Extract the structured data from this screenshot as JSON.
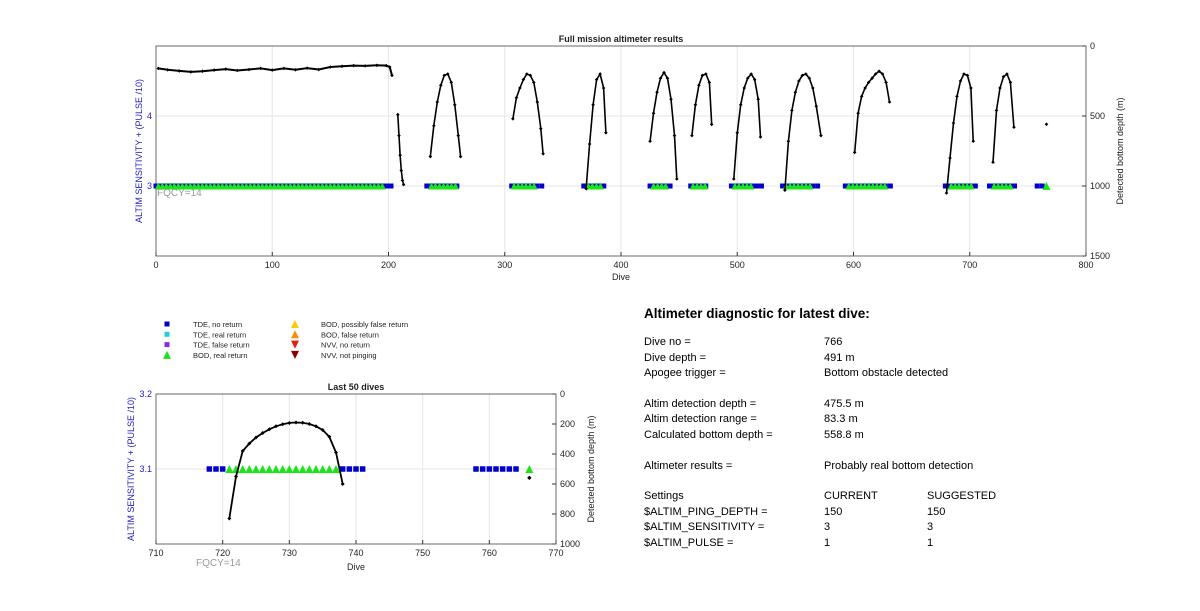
{
  "colors": {
    "tde_no_return": "#0000cc",
    "tde_real_return": "#22cfd8",
    "tde_false_return": "#8a2be2",
    "bod_real_return": "#19e619",
    "bod_possibly_false_return": "#ffcc00",
    "bod_false_return": "#ff8c00",
    "nvv_no_return": "#e02010",
    "nvv_not_pinging": "#8b0000",
    "depth_line": "#000000",
    "left_axis_label": "#1f1fbf",
    "annotation": "#999999"
  },
  "chart_data": [
    {
      "type": "scatter",
      "title": "Full mission altimeter results",
      "xlabel": "Dive",
      "ylabel": "ALTIM SENSITIVITY + (PULSE /10)",
      "y2label": "Detected bottom depth (m)",
      "xlim": [
        0,
        800
      ],
      "ylim": [
        2,
        5
      ],
      "y2lim": [
        0,
        1500
      ],
      "y2_reversed": true,
      "xticks": [
        "0",
        "100",
        "200",
        "300",
        "400",
        "500",
        "600",
        "700",
        "800"
      ],
      "yticks": [
        "3",
        "4"
      ],
      "y2ticks": [
        "0",
        "500",
        "1000",
        "1500"
      ],
      "grid": true,
      "annotation": "FQCY=14",
      "tde_no_return_segments": [
        [
          0,
          205
        ],
        [
          233,
          263
        ],
        [
          306,
          334
        ],
        [
          368,
          387
        ],
        [
          425,
          446
        ],
        [
          460,
          477
        ],
        [
          495,
          521
        ],
        [
          539,
          573
        ],
        [
          593,
          636
        ],
        [
          679,
          707
        ],
        [
          717,
          741
        ],
        [
          758,
          764
        ]
      ],
      "bod_real_return_segments": [
        [
          2,
          198
        ],
        [
          237,
          260
        ],
        [
          308,
          328
        ],
        [
          372,
          384
        ],
        [
          428,
          441
        ],
        [
          462,
          474
        ],
        [
          498,
          515
        ],
        [
          542,
          566
        ],
        [
          596,
          628
        ],
        [
          684,
          702
        ],
        [
          721,
          738
        ]
      ],
      "bod_real_return_points": [
        766
      ],
      "depth_arcs": [
        {
          "x": [
            208,
            209,
            210,
            211,
            212,
            213
          ],
          "depth": [
            490,
            640,
            780,
            890,
            960,
            990
          ]
        },
        {
          "x": [
            236,
            239,
            242,
            245,
            248,
            251,
            254,
            257,
            260,
            262
          ],
          "depth": [
            790,
            570,
            400,
            280,
            210,
            200,
            260,
            420,
            640,
            790
          ]
        },
        {
          "x": [
            307,
            310,
            313,
            316,
            319,
            322,
            325,
            328,
            331,
            333
          ],
          "depth": [
            520,
            370,
            300,
            240,
            200,
            210,
            260,
            400,
            590,
            770
          ]
        },
        {
          "x": [
            370,
            373,
            376,
            379,
            382,
            385,
            387
          ],
          "depth": [
            1020,
            700,
            420,
            240,
            200,
            300,
            620
          ]
        },
        {
          "x": [
            425,
            428,
            431,
            434,
            437,
            440,
            443,
            446,
            448
          ],
          "depth": [
            680,
            480,
            330,
            230,
            190,
            230,
            380,
            640,
            950
          ]
        },
        {
          "x": [
            461,
            464,
            467,
            470,
            473,
            476,
            478
          ],
          "depth": [
            640,
            420,
            280,
            210,
            200,
            260,
            560
          ]
        },
        {
          "x": [
            497,
            500,
            503,
            506,
            509,
            512,
            515,
            518,
            520
          ],
          "depth": [
            950,
            620,
            420,
            300,
            230,
            200,
            240,
            380,
            650
          ]
        },
        {
          "x": [
            541,
            544,
            547,
            550,
            553,
            556,
            559,
            562,
            565,
            568,
            572
          ],
          "depth": [
            1030,
            680,
            460,
            330,
            250,
            210,
            200,
            230,
            300,
            430,
            640
          ]
        },
        {
          "x": [
            601,
            604,
            607,
            610,
            613,
            616,
            619,
            622,
            625,
            628,
            631
          ],
          "depth": [
            760,
            480,
            360,
            300,
            260,
            230,
            200,
            180,
            200,
            260,
            400
          ]
        },
        {
          "x": [
            680,
            683,
            686,
            689,
            692,
            695,
            698,
            701,
            703
          ],
          "depth": [
            1050,
            800,
            550,
            360,
            250,
            200,
            210,
            300,
            680
          ]
        },
        {
          "x": [
            720,
            723,
            726,
            729,
            732,
            735,
            738
          ],
          "depth": [
            830,
            460,
            300,
            220,
            200,
            260,
            580
          ]
        },
        {
          "x": [
            766
          ],
          "depth": [
            558.8
          ]
        }
      ],
      "surface_depth_trace": {
        "x": [
          2,
          10,
          20,
          30,
          40,
          50,
          60,
          70,
          80,
          90,
          100,
          110,
          120,
          130,
          140,
          150,
          160,
          170,
          180,
          190,
          198,
          201,
          203
        ],
        "depth": [
          160,
          170,
          178,
          185,
          180,
          172,
          165,
          175,
          168,
          160,
          172,
          160,
          170,
          158,
          168,
          150,
          145,
          140,
          142,
          138,
          140,
          150,
          210
        ]
      }
    },
    {
      "type": "scatter",
      "title": "Last 50 dives",
      "xlabel": "Dive",
      "ylabel": "ALTIM SENSITIVITY + (PULSE /10)",
      "y2label": "Detected bottom depth (m)",
      "xlim": [
        710,
        770
      ],
      "ylim": [
        3.0,
        3.2
      ],
      "y2lim": [
        0,
        1000
      ],
      "y2_reversed": true,
      "xticks": [
        "710",
        "720",
        "730",
        "740",
        "750",
        "760",
        "770"
      ],
      "yticks": [
        "3.1",
        "3.2"
      ],
      "y2ticks": [
        "0",
        "200",
        "400",
        "600",
        "800",
        "1000"
      ],
      "grid": true,
      "annotation": "FQCY=14",
      "tde_no_return": {
        "x": [
          718,
          719,
          720,
          738,
          739,
          740,
          741,
          758,
          759,
          760,
          761,
          762,
          763,
          764
        ],
        "y": 3.1
      },
      "bod_real_return": {
        "x": [
          721,
          722,
          723,
          724,
          725,
          726,
          727,
          728,
          729,
          730,
          731,
          732,
          733,
          734,
          735,
          736,
          737,
          766
        ],
        "y": 3.1
      },
      "depth_arc": {
        "x": [
          721,
          722,
          723,
          724,
          725,
          726,
          727,
          728,
          729,
          730,
          731,
          732,
          733,
          734,
          735,
          736,
          737,
          738
        ],
        "depth": [
          830,
          550,
          380,
          330,
          290,
          260,
          235,
          215,
          202,
          193,
          190,
          192,
          200,
          215,
          240,
          285,
          390,
          600
        ]
      },
      "depth_point": {
        "x": [
          766
        ],
        "depth": [
          558.8
        ]
      }
    }
  ],
  "legend": {
    "items": [
      {
        "label": "TDE, no return",
        "marker": "square",
        "color": "#0000cc"
      },
      {
        "label": "TDE, real return",
        "marker": "square",
        "color": "#22cfd8"
      },
      {
        "label": "TDE, false return",
        "marker": "square",
        "color": "#8a2be2"
      },
      {
        "label": "BOD, real return",
        "marker": "triangle-up",
        "color": "#19e619"
      },
      {
        "label": "BOD, possibly false return",
        "marker": "triangle-up",
        "color": "#ffcc00"
      },
      {
        "label": "BOD, false return",
        "marker": "triangle-up",
        "color": "#ff8c00"
      },
      {
        "label": "NVV, no return",
        "marker": "triangle-down",
        "color": "#e02010"
      },
      {
        "label": "NVV, not pinging",
        "marker": "triangle-down",
        "color": "#8b0000"
      }
    ]
  },
  "diagnostic": {
    "title": "Altimeter diagnostic for latest dive:",
    "dive_no_label": "Dive no =",
    "dive_no_value": "766",
    "dive_depth_label": "Dive depth =",
    "dive_depth_value": "491 m",
    "apogee_label": "Apogee trigger =",
    "apogee_value": "Bottom obstacle detected",
    "altim_depth_label": "Altim detection depth =",
    "altim_depth_value": "475.5 m",
    "altim_range_label": "Altim detection range =",
    "altim_range_value": "83.3 m",
    "calc_bottom_label": "Calculated bottom depth =",
    "calc_bottom_value": "558.8 m",
    "results_label": "Altimeter results =",
    "results_value": "Probably real bottom detection",
    "settings_label": "Settings",
    "current_label": "CURRENT",
    "suggested_label": "SUGGESTED",
    "ping_depth_label": "$ALTIM_PING_DEPTH =",
    "ping_depth_current": "150",
    "ping_depth_suggested": "150",
    "sensitivity_label": "$ALTIM_SENSITIVITY =",
    "sensitivity_current": "3",
    "sensitivity_suggested": "3",
    "pulse_label": "$ALTIM_PULSE =",
    "pulse_current": "1",
    "pulse_suggested": "1"
  }
}
